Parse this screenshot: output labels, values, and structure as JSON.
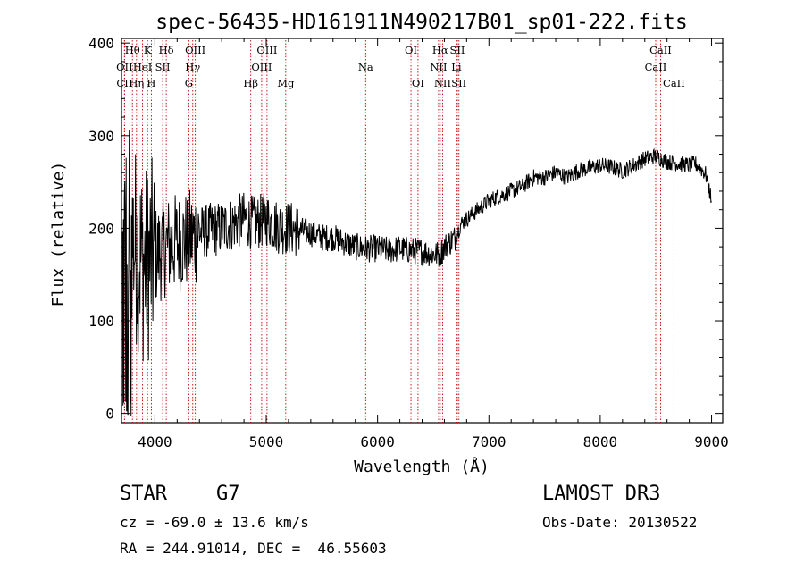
{
  "chart_data": {
    "type": "line",
    "title": "spec-56435-HD161911N490217B01_sp01-222.fits",
    "xlabel": "Wavelength (Å)",
    "ylabel": "Flux (relative)",
    "xlim": [
      3700,
      9100
    ],
    "ylim": [
      -10,
      405
    ],
    "xticks": [
      4000,
      5000,
      6000,
      7000,
      8000,
      9000
    ],
    "yticks": [
      0,
      100,
      200,
      300,
      400
    ],
    "grid": false,
    "series": [
      {
        "name": "spectrum",
        "x": [
          3700,
          3750,
          3800,
          3850,
          3900,
          3950,
          4000,
          4100,
          4200,
          4300,
          4400,
          4500,
          4600,
          4700,
          4800,
          4900,
          5000,
          5100,
          5200,
          5300,
          5400,
          5500,
          5600,
          5700,
          5800,
          5900,
          6000,
          6100,
          6200,
          6300,
          6400,
          6500,
          6560,
          6600,
          6700,
          6750,
          6800,
          6900,
          7000,
          7100,
          7200,
          7300,
          7400,
          7500,
          7600,
          7700,
          7800,
          7900,
          8000,
          8100,
          8200,
          8300,
          8400,
          8500,
          8600,
          8700,
          8800,
          8850,
          8900,
          8950,
          9000
        ],
        "values": [
          150,
          210,
          190,
          175,
          160,
          165,
          170,
          180,
          185,
          188,
          195,
          198,
          200,
          205,
          210,
          205,
          210,
          202,
          200,
          198,
          195,
          190,
          190,
          185,
          180,
          178,
          178,
          176,
          178,
          176,
          175,
          172,
          172,
          180,
          190,
          205,
          210,
          220,
          230,
          235,
          240,
          245,
          255,
          255,
          260,
          255,
          262,
          265,
          268,
          266,
          262,
          268,
          275,
          278,
          272,
          270,
          268,
          270,
          265,
          258,
          230
        ]
      }
    ],
    "lines": [
      {
        "label": "Hθ",
        "x": 3798,
        "row": 0
      },
      {
        "label": "OII",
        "x": 3727,
        "row": 1
      },
      {
        "label": "CII",
        "x": 3727,
        "row": 2
      },
      {
        "label": "Hη",
        "x": 3835,
        "row": 2
      },
      {
        "label": "HeI",
        "x": 3889,
        "row": 1
      },
      {
        "label": "K",
        "x": 3934,
        "row": 0
      },
      {
        "label": "H",
        "x": 3968,
        "row": 2
      },
      {
        "label": "SII",
        "x": 4070,
        "row": 1
      },
      {
        "label": "Hδ",
        "x": 4102,
        "row": 0
      },
      {
        "label": "OIII",
        "x": 4363,
        "row": 0
      },
      {
        "label": "Hγ",
        "x": 4340,
        "row": 1
      },
      {
        "label": "G",
        "x": 4305,
        "row": 2
      },
      {
        "label": "Hβ",
        "x": 4861,
        "row": 2
      },
      {
        "label": "OIII",
        "x": 5007,
        "row": 0
      },
      {
        "label": "OIII",
        "x": 4959,
        "row": 1
      },
      {
        "label": "Mg",
        "x": 5175,
        "row": 2
      },
      {
        "label": "Na",
        "x": 5893,
        "row": 1
      },
      {
        "label": "OI",
        "x": 6300,
        "row": 0
      },
      {
        "label": "OI",
        "x": 6363,
        "row": 2
      },
      {
        "label": "Hα",
        "x": 6563,
        "row": 0
      },
      {
        "label": "NII",
        "x": 6548,
        "row": 1
      },
      {
        "label": "NII",
        "x": 6584,
        "row": 2
      },
      {
        "label": "SII",
        "x": 6717,
        "row": 0
      },
      {
        "label": "Li",
        "x": 6708,
        "row": 1
      },
      {
        "label": "SII",
        "x": 6731,
        "row": 2
      },
      {
        "label": "CaII",
        "x": 8542,
        "row": 0
      },
      {
        "label": "CaII",
        "x": 8498,
        "row": 1
      },
      {
        "label": "CaII",
        "x": 8662,
        "row": 2
      }
    ]
  },
  "info": {
    "object_class": "STAR",
    "subclass": "G7",
    "survey": "LAMOST DR3",
    "cz": "cz = -69.0 ± 13.6 km/s",
    "obs_date": "Obs-Date: 20130522",
    "coords": "RA = 244.91014, DEC =  46.55603"
  }
}
